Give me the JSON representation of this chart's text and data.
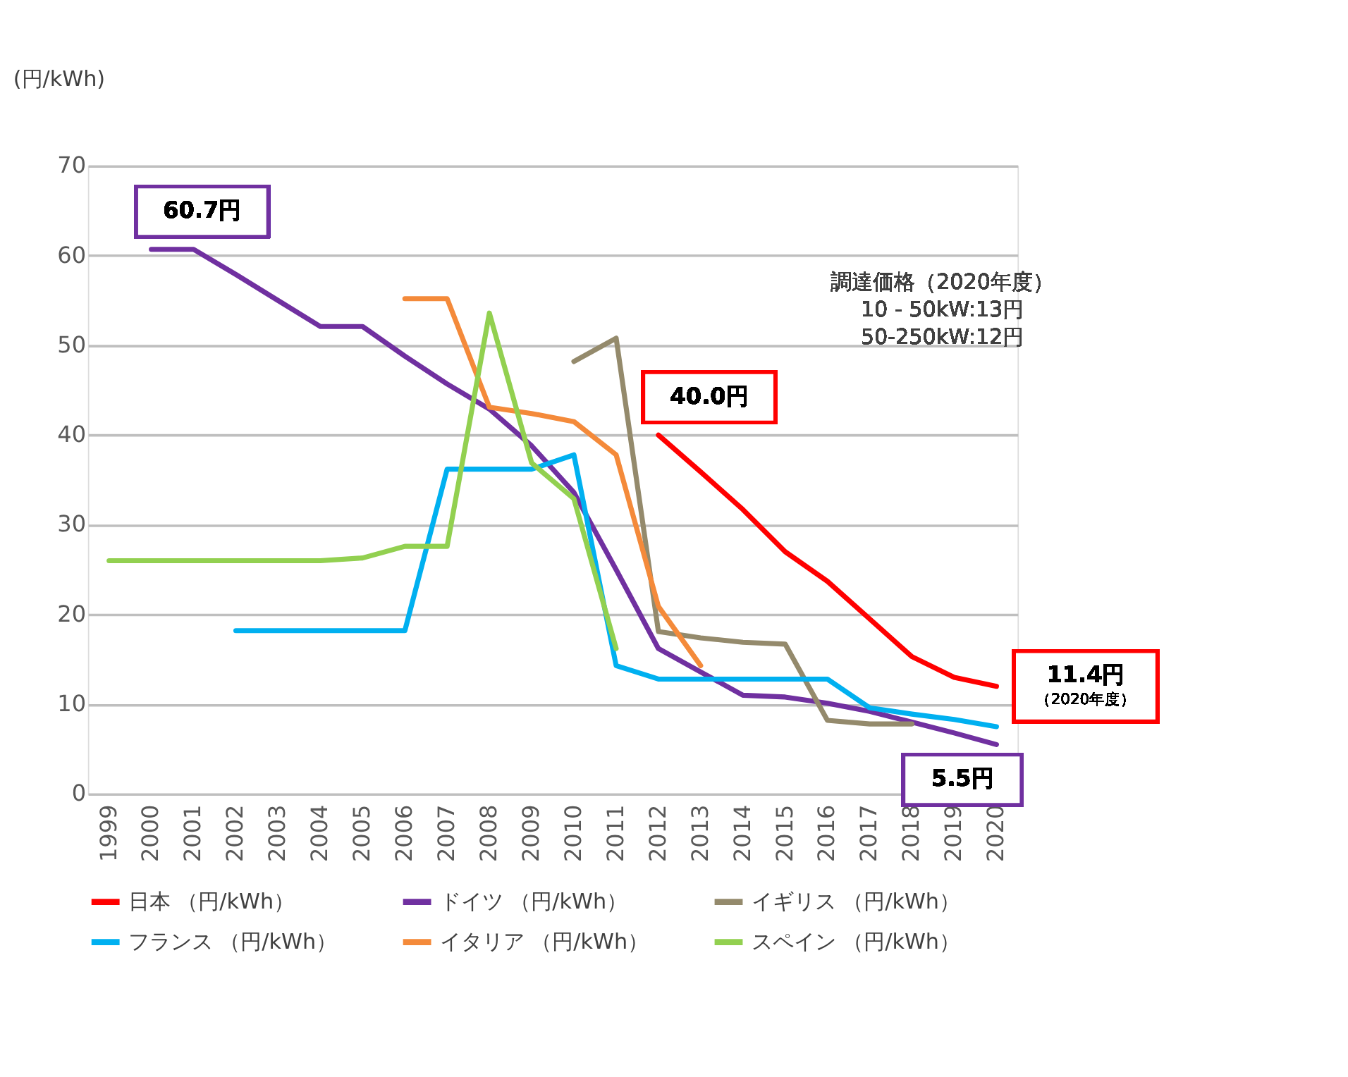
{
  "chart_data": {
    "type": "line",
    "ylabel": "(円/kWh)",
    "categories": [
      "1999",
      "2000",
      "2001",
      "2002",
      "2003",
      "2004",
      "2005",
      "2006",
      "2007",
      "2008",
      "2009",
      "2010",
      "2011",
      "2012",
      "2013",
      "2014",
      "2015",
      "2016",
      "2017",
      "2018",
      "2019",
      "2020"
    ],
    "series": [
      {
        "name": "日本 （円/kWh）",
        "color": "#ff0000",
        "values": [
          null,
          null,
          null,
          null,
          null,
          null,
          null,
          null,
          null,
          null,
          null,
          null,
          null,
          40.0,
          35.9,
          31.7,
          27.0,
          23.7,
          19.5,
          15.3,
          13.0,
          12.0
        ]
      },
      {
        "name": "ドイツ （円/kWh）",
        "color": "#7030a0",
        "values": [
          null,
          60.7,
          60.7,
          57.9,
          55.0,
          52.1,
          52.1,
          48.8,
          45.7,
          42.9,
          38.8,
          33.6,
          25.0,
          16.2,
          13.6,
          11.0,
          10.8,
          10.1,
          9.2,
          8.0,
          6.8,
          5.5
        ]
      },
      {
        "name": "イギリス （円/kWh）",
        "color": "#948a6c",
        "values": [
          null,
          null,
          null,
          null,
          null,
          null,
          null,
          null,
          null,
          null,
          null,
          48.2,
          50.8,
          18.1,
          17.4,
          16.9,
          16.7,
          8.2,
          7.8,
          7.8,
          null,
          null
        ]
      },
      {
        "name": "フランス （円/kWh）",
        "color": "#00b0f0",
        "values": [
          null,
          null,
          null,
          18.2,
          18.2,
          18.2,
          18.2,
          18.2,
          36.2,
          36.2,
          36.2,
          37.8,
          14.3,
          12.8,
          12.8,
          12.8,
          12.8,
          12.8,
          9.6,
          8.9,
          8.3,
          7.5
        ]
      },
      {
        "name": "イタリア （円/kWh）",
        "color": "#f48a3a",
        "values": [
          null,
          null,
          null,
          null,
          null,
          null,
          null,
          55.2,
          55.2,
          43.1,
          42.4,
          41.5,
          37.8,
          20.9,
          14.3,
          null,
          null,
          null,
          null,
          null,
          null,
          null
        ]
      },
      {
        "name": "スペイン （円/kWh）",
        "color": "#92d050",
        "values": [
          26.0,
          26.0,
          26.0,
          26.0,
          26.0,
          26.0,
          26.3,
          27.6,
          27.6,
          53.6,
          36.9,
          32.9,
          16.2,
          null,
          null,
          null,
          null,
          null,
          null,
          null,
          null,
          null
        ]
      }
    ],
    "ylim": [
      0,
      70
    ],
    "yticks": [
      0,
      10,
      20,
      30,
      40,
      50,
      60,
      70
    ],
    "grid": "y",
    "legend": "bottom",
    "line_style": "solid",
    "marker": "none",
    "annotations": [
      {
        "text": "60.7円",
        "x": "2000",
        "y": 60.7
      },
      {
        "text": "40.0円",
        "x": "2012",
        "y": 40.0
      },
      {
        "text": "11.4円",
        "x": "2020",
        "y": 12.0
      },
      "（2020年度）",
      {
        "text": "5.5円",
        "x": "2020",
        "y": 5.5
      },
      "調達価格（2020年度）\n10 - 50kW:13円\n50-250kW:12円"
    ]
  }
}
